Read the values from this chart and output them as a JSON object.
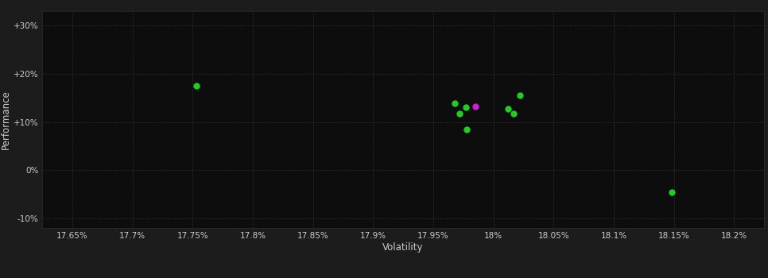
{
  "xlabel": "Volatility",
  "ylabel": "Performance",
  "background_color": "#1c1c1c",
  "plot_bg_color": "#0d0d0d",
  "grid_color": "#2e2e2e",
  "text_color": "#cccccc",
  "xlim": [
    17.625,
    18.225
  ],
  "ylim": [
    -12,
    33
  ],
  "yticks": [
    -10,
    0,
    10,
    20,
    30
  ],
  "ytick_labels": [
    "-10%",
    "0%",
    "+10%",
    "+20%",
    "+30%"
  ],
  "xticks": [
    17.65,
    17.7,
    17.75,
    17.8,
    17.85,
    17.9,
    17.95,
    18.0,
    18.05,
    18.1,
    18.15,
    18.2
  ],
  "xtick_labels": [
    "17.65%",
    "17.7%",
    "17.75%",
    "17.8%",
    "17.85%",
    "17.9%",
    "17.95%",
    "18%",
    "18.05%",
    "18.1%",
    "18.15%",
    "18.2%"
  ],
  "green_points": [
    [
      17.753,
      17.5
    ],
    [
      17.968,
      13.8
    ],
    [
      17.977,
      13.0
    ],
    [
      17.972,
      11.8
    ],
    [
      17.978,
      8.5
    ],
    [
      18.022,
      15.5
    ],
    [
      18.012,
      12.8
    ],
    [
      18.017,
      11.8
    ],
    [
      18.148,
      -4.5
    ]
  ],
  "magenta_points": [
    [
      17.985,
      13.3
    ]
  ],
  "green_color": "#22cc22",
  "magenta_color": "#cc22cc",
  "marker_size": 6
}
